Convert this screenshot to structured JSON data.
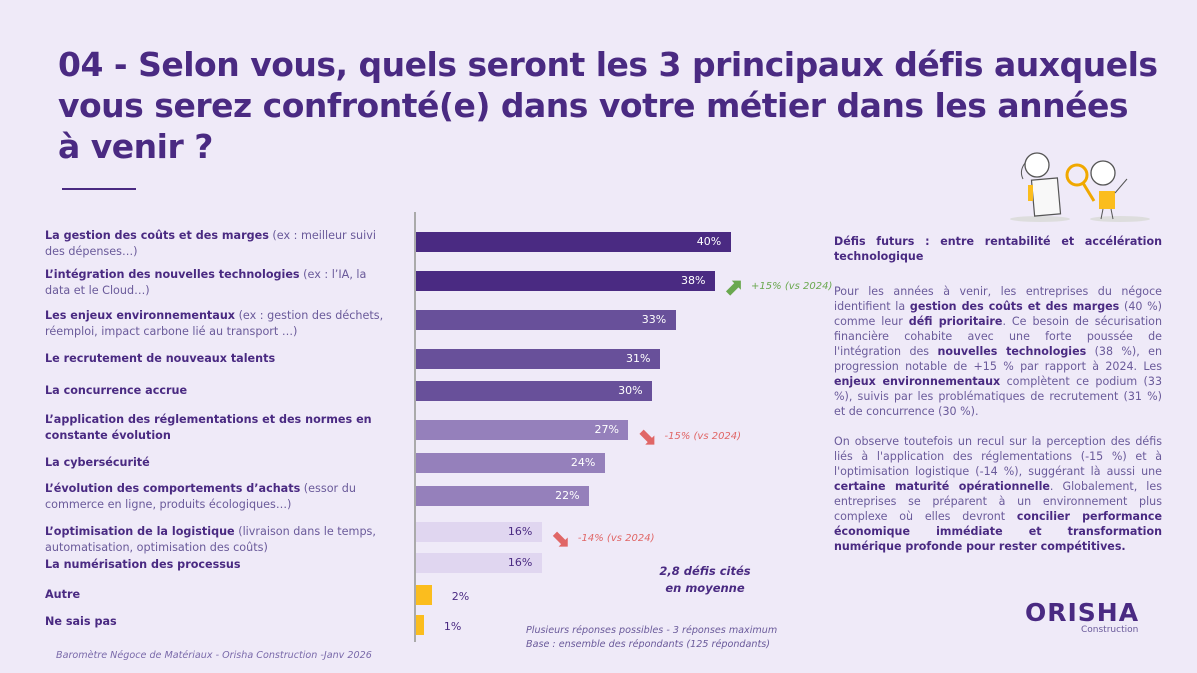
{
  "title": "04 - Selon vous, quels seront les 3 principaux défis auxquels vous serez confronté(e) dans votre métier dans les années à venir ?",
  "labels": [
    {
      "bold": "La gestion  des coûts et des marges",
      "rest": " (ex : meilleur suivi des dépenses…)"
    },
    {
      "bold": "L’intégration des nouvelles technologies",
      "rest": " (ex : l’IA, la data et le Cloud…)"
    },
    {
      "bold": "Les enjeux environnementaux",
      "rest": " (ex : gestion des déchets, réemploi, impact carbone lié au transport …)"
    },
    {
      "bold": "Le recrutement de nouveaux talents",
      "rest": ""
    },
    {
      "bold": "La concurrence accrue",
      "rest": ""
    },
    {
      "bold": "L’application des réglementations et des normes en constante évolution",
      "rest": ""
    },
    {
      "bold": "La cybersécurité",
      "rest": ""
    },
    {
      "bold": "L’évolution des comportements d’achats",
      "rest": " (essor du commerce en ligne, produits écologiques…)"
    },
    {
      "bold": "L’optimisation de la logistique",
      "rest": " (livraison dans le temps, automatisation, optimisation des coûts)"
    },
    {
      "bold": "La numérisation des processus",
      "rest": ""
    },
    {
      "bold": "Autre",
      "rest": ""
    },
    {
      "bold": "Ne sais pas",
      "rest": ""
    }
  ],
  "chart_data": {
    "type": "bar",
    "orientation": "horizontal",
    "categories": [
      "La gestion des coûts et des marges",
      "L’intégration des nouvelles technologies",
      "Les enjeux environnementaux",
      "Le recrutement de nouveaux talents",
      "La concurrence accrue",
      "L’application des réglementations et des normes en constante évolution",
      "La cybersécurité",
      "L’évolution des comportements d’achats",
      "L’optimisation de la logistique",
      "La numérisation des processus",
      "Autre",
      "Ne sais pas"
    ],
    "values": [
      40,
      38,
      33,
      31,
      30,
      27,
      24,
      22,
      16,
      16,
      2,
      1
    ],
    "value_labels": [
      "40%",
      "38%",
      "33%",
      "31%",
      "30%",
      "27%",
      "24%",
      "22%",
      "16%",
      "16%",
      "2%",
      "1%"
    ],
    "bar_colors": [
      "#4a2a82",
      "#4a2a82",
      "#68509a",
      "#68509a",
      "#68509a",
      "#9580bb",
      "#9580bb",
      "#9580bb",
      "#e0d6f0",
      "#e0d6f0",
      "#fbbd1e",
      "#fbbd1e"
    ],
    "annotations": [
      {
        "index": 1,
        "text": "+15% (vs 2024)",
        "direction": "up",
        "color": "#6aa84f"
      },
      {
        "index": 5,
        "text": "-15% (vs 2024)",
        "direction": "down",
        "color": "#e06666"
      },
      {
        "index": 8,
        "text": "-14% (vs 2024)",
        "direction": "down",
        "color": "#e06666"
      }
    ],
    "grid": false
  },
  "average": {
    "line1": "2,8 défis cités",
    "line2": "en moyenne"
  },
  "notes": {
    "line1": "Plusieurs réponses possibles - 3 réponses maximum",
    "line2": "Base : ensemble des répondants (125 répondants)"
  },
  "source": "Baromètre Négoce de Matériaux - Orisha Construction -Janv 2026",
  "side": {
    "heading": "Défis futurs : entre rentabilité et accélération technologique",
    "p1": [
      {
        "t": "Pour les années à venir, les entreprises du négoce identifient la "
      },
      {
        "b": "gestion des coûts et des marges"
      },
      {
        "t": " (40 %) comme leur "
      },
      {
        "b": "défi prioritaire"
      },
      {
        "t": ". Ce besoin de sécurisation financière cohabite avec une forte poussée de l'intégration des "
      },
      {
        "b": "nouvelles technologies"
      },
      {
        "t": " (38 %), en progression notable de +15 % par rapport à 2024. Les "
      },
      {
        "b": "enjeux environnementaux"
      },
      {
        "t": " complètent ce podium (33 %), suivis par les problématiques de recrutement (31 %) et de concurrence (30 %)."
      }
    ],
    "p2": [
      {
        "t": "On observe toutefois un recul sur la perception des défis liés à l'application des réglementations (-15 %) et à l'optimisation logistique (-14 %), suggérant là aussi une "
      },
      {
        "b": "certaine maturité opérationnelle"
      },
      {
        "t": ". Globalement, les entreprises se préparent à un environnement plus complexe où elles devront "
      },
      {
        "b": "concilier performance économique immédiate et transformation numérique profonde pour rester compétitives."
      }
    ]
  },
  "logo": {
    "main": "ORISHA",
    "sub": "Construction"
  }
}
